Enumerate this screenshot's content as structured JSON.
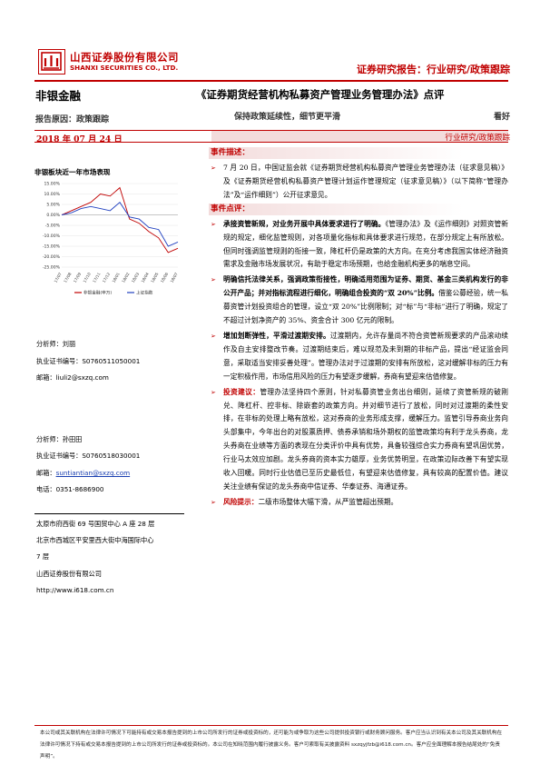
{
  "header": {
    "company_cn": "山西证券股份有限公司",
    "company_en": "SHANXI SECURITIES CO., LTD.",
    "report_type": "证券研究报告：行业研究/政策跟踪",
    "brand_color": "#c00000"
  },
  "sector": "非银金融",
  "title": "《证券期货经营机构私募资产管理业务管理办法》点评",
  "subtitle": "保持政策延续性，细节更平滑",
  "reason": "报告原因：政策跟踪",
  "rating": "看好",
  "date": "2018 年 07 月 24 日",
  "tag": "行业研究/政策跟踪",
  "chart_data": {
    "type": "line",
    "title": "非银板块近一年市场表现",
    "x": [
      "17/07",
      "17/08",
      "17/09",
      "17/10",
      "17/11",
      "17/12",
      "18/01",
      "18/02",
      "18/03",
      "18/04",
      "18/05",
      "18/06",
      "18/07"
    ],
    "ylim": [
      -25,
      15
    ],
    "yticks": [
      "15.00%",
      "10.00%",
      "5.00%",
      "0.00%",
      "-5.00%",
      "-10.00%",
      "-15.00%",
      "-20.00%",
      "-25.00%"
    ],
    "series": [
      {
        "name": "非银金融(申万)",
        "color": "#c00000",
        "values": [
          0,
          2,
          4,
          6,
          10,
          9,
          13,
          -2,
          -4,
          -8,
          -11,
          -18,
          -16
        ]
      },
      {
        "name": "上证指数",
        "color": "#1f3fbf",
        "values": [
          0,
          1,
          3,
          4,
          3,
          2,
          6,
          -1,
          -2,
          -6,
          -7,
          -15,
          -13
        ]
      }
    ]
  },
  "analysts": [
    {
      "analyst_label": "分析师：",
      "analyst_name": "刘丽",
      "cert_label": "执业证书编号：",
      "cert": "S0760511050001",
      "email_label": "邮箱：",
      "email": "liuli2@sxzq.com"
    },
    {
      "analyst_label": "分析师：",
      "analyst_name": "孙田田",
      "cert_label": "执业证书编号：",
      "cert": "S0760518030001",
      "email_label": "邮箱：",
      "email": "suntiantian@sxzq.com"
    }
  ],
  "phone": "电话：0351-8686900",
  "address": {
    "taiyuan": "太原市府西街 69 号国贸中心 A 座 28 层",
    "beijing_1": "北京市西城区平安里西大街中海国际中心",
    "beijing_2": "7 层",
    "company": "山西证券股份有限公司",
    "url": "http://www.i618.com.cn"
  },
  "event": {
    "head": "事件描述：",
    "text": "7 月 20 日，中国证监会就《证券期货经营机构私募资产管理业务管理办法（征求意见稿）》及《证券期货经营机构私募资产管理计划运作管理规定（征求意见稿）》（以下简称“管理办法”及“运作细则”）公开征求意见。"
  },
  "comment_head": "事件点评：",
  "points": [
    {
      "bold": "承接资管新规，对业务开展中具体要求进行了明确。",
      "text": "《管理办法》及《运作细则》对照资管新规的规定，细化监管规则，对各项量化指标和具体要求进行规范，在部分规定上有所放松。但同时强调监管规则的衔接一致，降杠杆仍是政策的大方向。在充分考虑我国实体经济融资需求及金融市场发展状况，有助于稳定市场预期，也给金融机构更多的喘息空间。"
    },
    {
      "bold": "明确信托法律关系，强调政策衔接性，明确适用范围为证券、期货、基金三类机构发行的非公开产品；并对指标流程进行细化，明确组合投资的“双 20%”比例。",
      "text": "借鉴公募经验，统一私募资管计划投资组合的管理，设立“双 20%”比例限制；对“标”与“非标”进行了明确，规定了不超过计划净资产的 35%、资金合计 300 亿元的限制。"
    },
    {
      "bold": "增加划断弹性，平滑过渡期安排。",
      "text": "过渡期内，允许存量尚不符合资管新规要求的产品滚动续作及自主安排整改节奏。过渡期结束后，难以规范及未到期的非标产品，提出“经证监会同意，采取适当安排妥善处理”。管理办法对于过渡期的安排有所放松，这对缓解非标的压力有一定积极作用，市场信用风险的压力有望逐步缓解，券商有望迎来估值修复。"
    },
    {
      "bold": "投资建议：",
      "text": "管理办法坚持四个原则，针对私募资管业务出台细则，延续了资管新规的破刚兑、降杠杆、控非标、除嵌套的政策方向。并对细节进行了放松，同时对过渡期的柔性安排，在非标的处理上略有放松，这对券商的业务形成支撑，缓解压力。监管引导券商业务向头部集中，今年出台的对股票质押、债券承销和场外期权的监管政策均有利于龙头券商，龙头券商在业绩等方面的表现在分类评价中具有优势，具备较强综合实力券商有望巩固优势，行业马太效应加剧。龙头券商的资本实力雄厚，业务优势明显，在政策边际改善下有望实现收入回暖。同时行业估值已至历史最低位，有望迎来估值修复，具有较高的配置价值。建议关注业绩有保证的龙头券商中信证券、华泰证券、海通证券。"
    },
    {
      "bold": "风险提示：",
      "text": "二级市场整体大幅下滑，从严监管超出预期。"
    }
  ],
  "footer": "本公司或其关联机构在法律许可情况下可能持有或交易本报告提到的上市公司所发行的证券或投资标的，还可能为或争取为这些公司提供投资银行或财务顾问服务。客户应当认识到有关本公司及其关联机构在法律许可情况下持有或交易本报告提到的上市公司所发行的证券或投资标的。本公司在知晓范围内履行披露义务。客户可索取有关披露资料 sxzqyjfzb@i618.com.cn。客户应全面理解本报告结尾处的“免责声明”。"
}
